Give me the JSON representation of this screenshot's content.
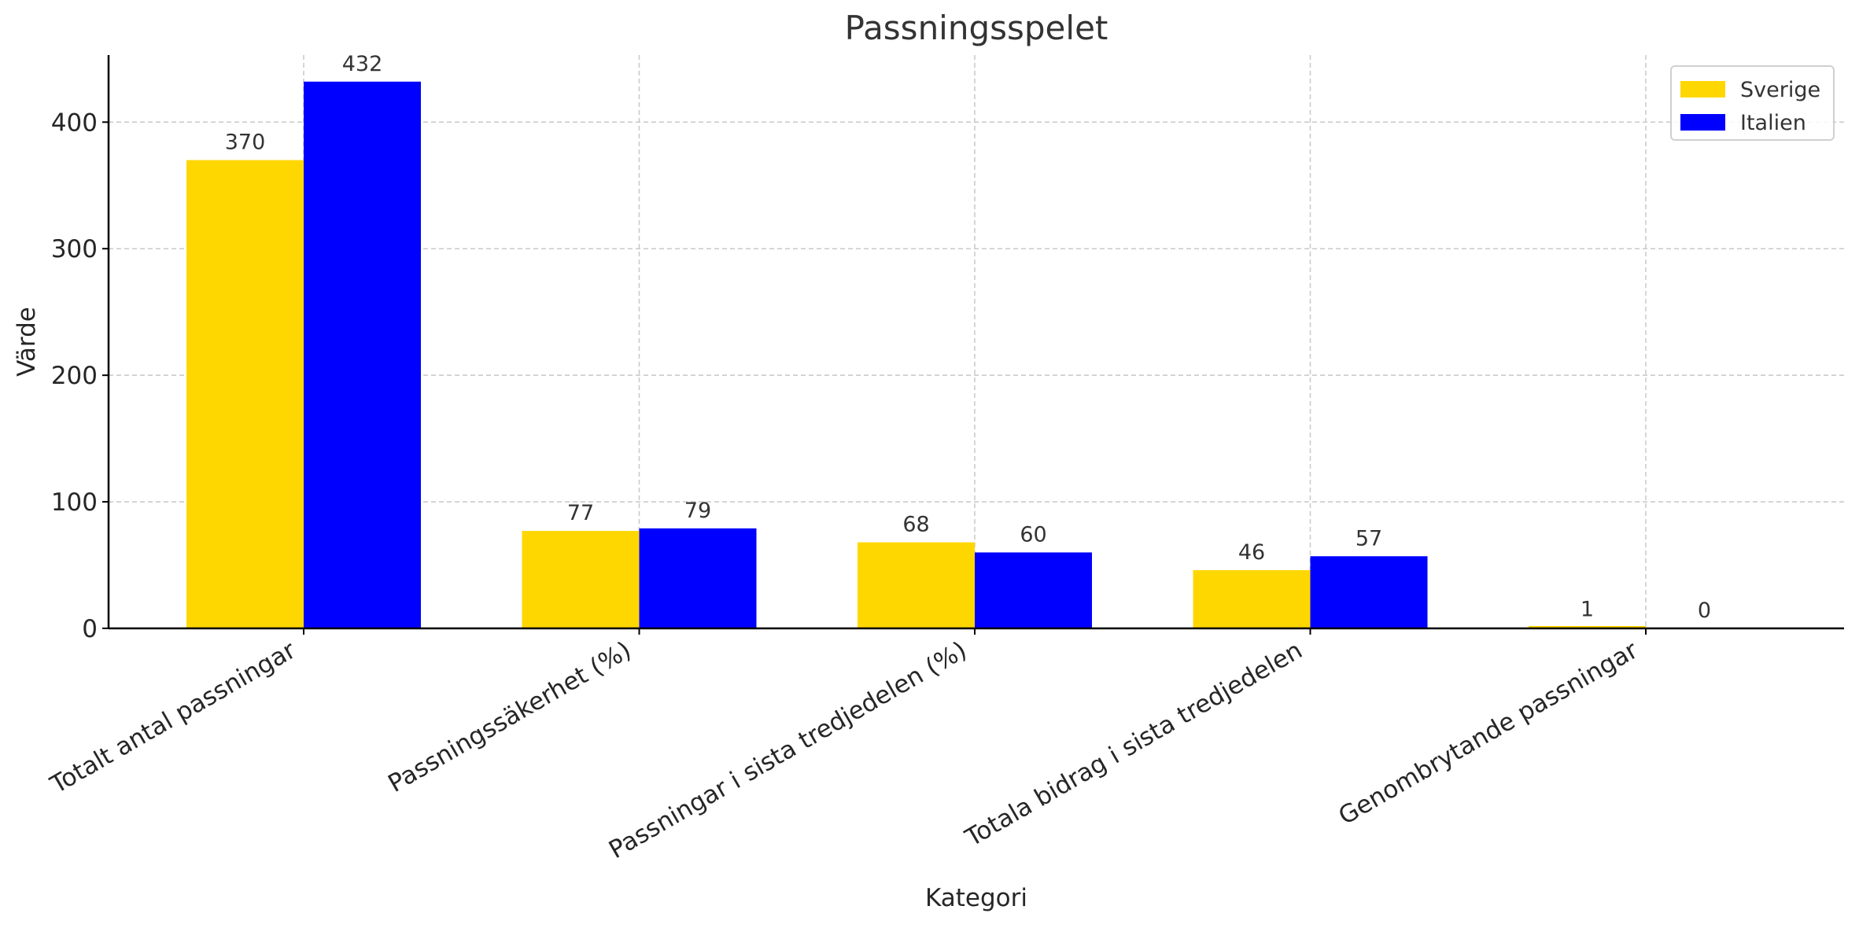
{
  "chart_data": {
    "type": "bar",
    "title": "Passningsspelet",
    "xlabel": "Kategori",
    "ylabel": "Värde",
    "categories": [
      "Totalt antal passningar",
      "Passningssäkerhet (%)",
      "Passningar i sista tredjedelen (%)",
      "Totala bidrag i sista tredjedelen",
      "Genombrytande passningar"
    ],
    "series": [
      {
        "name": "Sverige",
        "color": "#FFD700",
        "values": [
          370,
          77,
          68,
          46,
          1
        ]
      },
      {
        "name": "Italien",
        "color": "#0000FF",
        "values": [
          432,
          79,
          60,
          57,
          0
        ]
      }
    ],
    "ylim": [
      0,
      453
    ],
    "yticks": [
      0,
      100,
      200,
      300,
      400
    ],
    "grid": true,
    "legend_position": "top-right"
  }
}
